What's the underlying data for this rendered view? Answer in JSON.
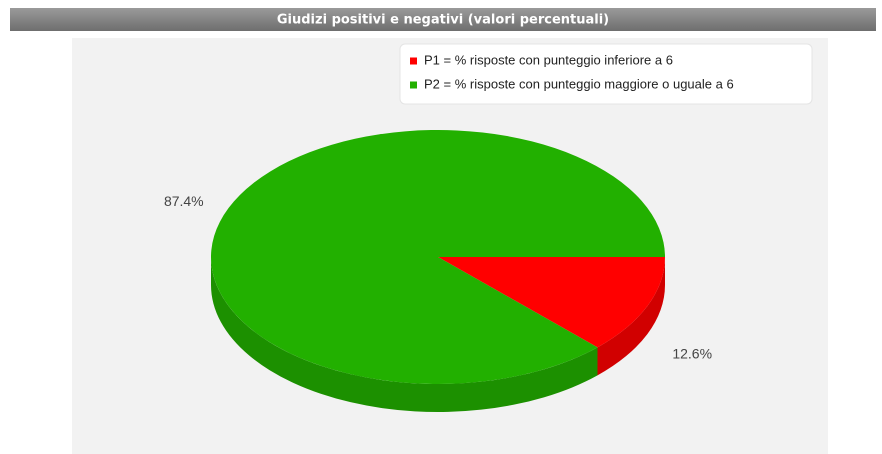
{
  "chart_data": {
    "type": "pie",
    "title": "Giudizi positivi e negativi (valori percentuali)",
    "categories": [
      "P1 = % risposte con punteggio inferiore a 6",
      "P2 = % risposte con punteggio maggiore o uguale a 6"
    ],
    "values": [
      12.6,
      87.4
    ],
    "value_labels": [
      "12.6%",
      "87.4%"
    ],
    "colors": [
      "#ff0000",
      "#22b000"
    ],
    "legend": "top-right"
  }
}
